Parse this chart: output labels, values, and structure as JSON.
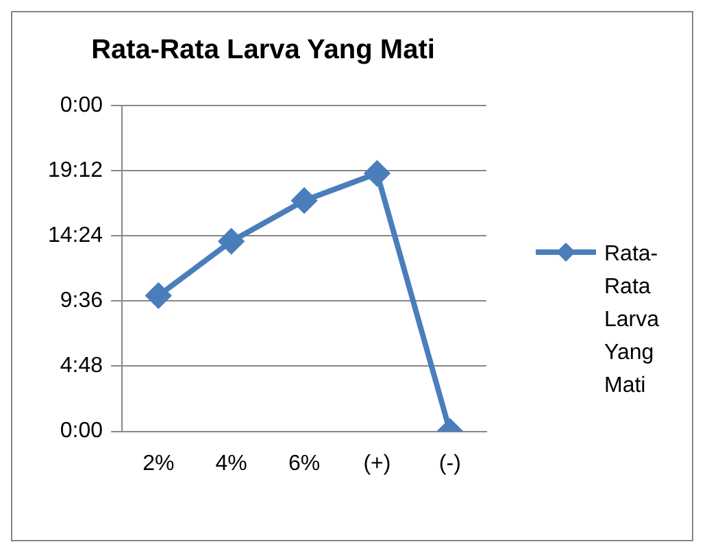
{
  "chart_data": {
    "type": "line",
    "title": "Rata-Rata Larva Yang Mati",
    "categories": [
      "2%",
      "4%",
      "6%",
      "(+)",
      "(-)"
    ],
    "series": [
      {
        "name": "Rata-Rata Larva Yang Mati",
        "color": "#4a7ebb",
        "values": [
          10,
          14,
          17,
          19,
          0
        ]
      }
    ],
    "ylim": [
      0,
      24
    ],
    "yticks": [
      {
        "value": 0,
        "label": "0:00"
      },
      {
        "value": 4.8,
        "label": "4:48"
      },
      {
        "value": 9.6,
        "label": "9:36"
      },
      {
        "value": 14.4,
        "label": "14:24"
      },
      {
        "value": 19.2,
        "label": "19:12"
      },
      {
        "value": 24,
        "label": "0:00"
      }
    ],
    "grid": "y",
    "legend": "right",
    "marker": "diamond",
    "line_style": "solid"
  }
}
